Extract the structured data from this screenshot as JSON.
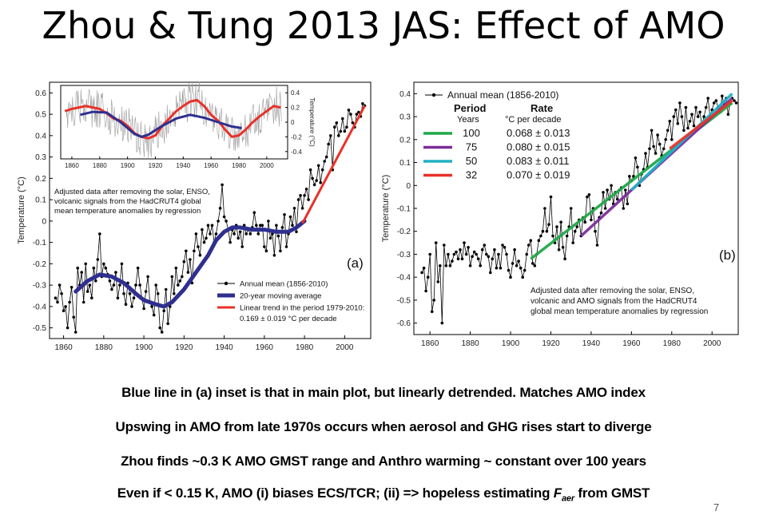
{
  "slide": {
    "title": "Zhou & Tung 2013 JAS: Effect of AMO",
    "page_number": "7",
    "bullets": [
      {
        "text": "Blue line in (a) inset is that in main plot, but linearly detrended. Matches AMO index"
      },
      {
        "text": "Upswing in AMO from late 1970s occurs when aerosol and GHG rises start to diverge"
      },
      {
        "text": "Zhou finds ~0.3 K AMO GMST range and Anthro warming ~ constant over 100 years"
      },
      {
        "pre": "Even if < 0.15 K, AMO (i) biases ECS/TCR; (ii) => hopeless estimating ",
        "var": "F",
        "sub": "aer",
        "post": " from GMST"
      }
    ]
  },
  "chart_data": [
    {
      "id": "a",
      "type": "line",
      "panel_label": "(a)",
      "ylabel": "Temperature (°C)",
      "xlim": [
        1853,
        2013
      ],
      "ylim": [
        -0.55,
        0.65
      ],
      "xticks": [
        1860,
        1880,
        1900,
        1920,
        1940,
        1960,
        1980,
        2000
      ],
      "yticks": [
        -0.5,
        -0.4,
        -0.3,
        -0.2,
        -0.1,
        0,
        0.1,
        0.2,
        0.3,
        0.4,
        0.5,
        0.6
      ],
      "ytick_labels": [
        "-0.5",
        "-0.4",
        "-0.3",
        "-0.2",
        "-0.1",
        "0",
        "0.1",
        "0.2",
        "0.3",
        "0.4",
        "0.5",
        "0.6"
      ],
      "xtick_labels": [
        "1860",
        "1880",
        "1900",
        "1920",
        "1940",
        "1960",
        "1980",
        "2000"
      ],
      "annotation": [
        "Adjusted data after removing the solar, ENSO,",
        "volcanic signals from the HadCRUT4 global",
        "mean temperature anomalies by regression"
      ],
      "legend": [
        {
          "label": "Annual mean (1856-2010)",
          "color": "#000000",
          "style": "marker-line"
        },
        {
          "label": "20-year moving average",
          "color": "#2e2f8f",
          "style": "thick"
        },
        {
          "label": "Linear trend in the period 1979-2010:",
          "label2": "0.169 ± 0.019 °C per decade",
          "color": "#e8312a",
          "style": "line"
        }
      ],
      "series": [
        {
          "name": "Annual mean (1856-2010)",
          "color": "#000000",
          "start_year": 1856,
          "values": [
            -0.36,
            -0.38,
            -0.3,
            -0.34,
            -0.42,
            -0.4,
            -0.5,
            -0.38,
            -0.31,
            -0.45,
            -0.52,
            -0.22,
            -0.3,
            -0.24,
            -0.38,
            -0.2,
            -0.33,
            -0.3,
            -0.36,
            -0.22,
            -0.28,
            -0.18,
            -0.06,
            -0.26,
            -0.2,
            -0.22,
            -0.25,
            -0.28,
            -0.32,
            -0.3,
            -0.24,
            -0.36,
            -0.3,
            -0.2,
            -0.34,
            -0.39,
            -0.29,
            -0.34,
            -0.4,
            -0.36,
            -0.3,
            -0.22,
            -0.3,
            -0.36,
            -0.41,
            -0.33,
            -0.26,
            -0.38,
            -0.4,
            -0.44,
            -0.3,
            -0.34,
            -0.5,
            -0.52,
            -0.42,
            -0.32,
            -0.48,
            -0.4,
            -0.26,
            -0.34,
            -0.22,
            -0.3,
            -0.28,
            -0.26,
            -0.19,
            -0.14,
            -0.24,
            -0.18,
            -0.29,
            -0.14,
            -0.06,
            -0.12,
            -0.16,
            -0.04,
            -0.1,
            -0.08,
            -0.02,
            -0.06,
            -0.02,
            -0.1,
            -0.06,
            0.0,
            0.06,
            0.17,
            0.02,
            0.0,
            -0.04,
            -0.1,
            -0.04,
            -0.06,
            -0.02,
            -0.08,
            -0.05,
            -0.12,
            -0.02,
            -0.06,
            -0.04,
            -0.06,
            -0.03,
            0.04,
            -0.02,
            -0.06,
            -0.02,
            -0.02,
            -0.12,
            -0.14,
            0.0,
            -0.08,
            -0.06,
            -0.16,
            -0.02,
            -0.07,
            -0.14,
            -0.03,
            0.03,
            -0.12,
            -0.06,
            0.02,
            -0.02,
            0.06,
            -0.05,
            0.1,
            0.12,
            0.06,
            0.12,
            0.15,
            0.1,
            0.24,
            0.2,
            0.17,
            0.19,
            0.26,
            0.18,
            0.24,
            0.28,
            0.3,
            0.36,
            0.4,
            0.24,
            0.44,
            0.46,
            0.4,
            0.42,
            0.48,
            0.42,
            0.44,
            0.52,
            0.5,
            0.46,
            0.44,
            0.5,
            0.51,
            0.49,
            0.55,
            0.54
          ]
        },
        {
          "name": "20-year moving average",
          "color": "#2e2f8f",
          "x": [
            1866,
            1872,
            1878,
            1884,
            1890,
            1896,
            1900,
            1906,
            1910,
            1914,
            1920,
            1926,
            1932,
            1936,
            1940,
            1944,
            1948,
            1954,
            1960,
            1966,
            1972,
            1976,
            1980
          ],
          "values": [
            -0.33,
            -0.28,
            -0.25,
            -0.26,
            -0.29,
            -0.34,
            -0.37,
            -0.39,
            -0.4,
            -0.38,
            -0.32,
            -0.24,
            -0.16,
            -0.09,
            -0.05,
            -0.03,
            -0.03,
            -0.04,
            -0.04,
            -0.05,
            -0.05,
            -0.03,
            0.0
          ]
        },
        {
          "name": "Linear trend 1979-2010",
          "color": "#e8312a",
          "x": [
            1979,
            2010
          ],
          "values": [
            -0.01,
            0.54
          ]
        }
      ],
      "inset": {
        "ylabel": "Temperature (°C)",
        "xlim": [
          1852,
          2015
        ],
        "ylim": [
          -0.5,
          0.5
        ],
        "xticks": [
          1860,
          1880,
          1900,
          1920,
          1940,
          1960,
          1980,
          2000
        ],
        "xtick_labels": [
          "1860",
          "1880",
          "1900",
          "1920",
          "1940",
          "1960",
          "1980",
          "2000"
        ],
        "yticks": [
          -0.4,
          -0.2,
          0,
          0.2,
          0.4
        ],
        "ytick_labels": [
          "-0.4",
          "-0.2",
          "0",
          "0.2",
          "0.4"
        ],
        "series": [
          {
            "name": "AMO index",
            "color": "#e8312a",
            "x": [
              1855,
              1860,
              1865,
              1870,
              1875,
              1880,
              1885,
              1890,
              1895,
              1900,
              1905,
              1910,
              1915,
              1920,
              1925,
              1930,
              1935,
              1940,
              1945,
              1950,
              1955,
              1960,
              1965,
              1970,
              1975,
              1980,
              1985,
              1990,
              1995,
              2000,
              2005,
              2010
            ],
            "values": [
              0.15,
              0.18,
              0.2,
              0.22,
              0.2,
              0.18,
              0.12,
              0.05,
              0.02,
              -0.05,
              -0.15,
              -0.2,
              -0.22,
              -0.18,
              -0.05,
              0.05,
              0.15,
              0.22,
              0.28,
              0.3,
              0.22,
              0.1,
              0.02,
              -0.1,
              -0.2,
              -0.18,
              -0.1,
              0.0,
              0.08,
              0.15,
              0.22,
              0.2
            ]
          },
          {
            "name": "Detrended 20-year moving average",
            "color": "#2e2f8f",
            "x": [
              1866,
              1875,
              1885,
              1895,
              1905,
              1910,
              1915,
              1925,
              1935,
              1945,
              1955,
              1965,
              1975,
              1982
            ],
            "values": [
              0.1,
              0.14,
              0.13,
              0.0,
              -0.16,
              -0.2,
              -0.17,
              -0.05,
              0.05,
              0.1,
              0.06,
              0.0,
              -0.06,
              -0.08
            ]
          }
        ]
      }
    },
    {
      "id": "b",
      "type": "line",
      "panel_label": "(b)",
      "ylabel": "Temperature (°C)",
      "xlim": [
        1852,
        2013
      ],
      "ylim": [
        -0.65,
        0.45
      ],
      "xticks": [
        1860,
        1880,
        1900,
        1920,
        1940,
        1960,
        1980,
        2000
      ],
      "xtick_labels": [
        "1860",
        "1880",
        "1900",
        "1920",
        "1940",
        "1960",
        "1980",
        "2000"
      ],
      "yticks": [
        -0.6,
        -0.5,
        -0.4,
        -0.3,
        -0.2,
        -0.1,
        0,
        0.1,
        0.2,
        0.3,
        0.4
      ],
      "ytick_labels": [
        "-0.6",
        "-0.5",
        "-0.4",
        "-0.3",
        "-0.2",
        "-0.1",
        "0",
        "0.1",
        "0.2",
        "0.3",
        "0.4"
      ],
      "annotation": [
        "Adjusted data after removing the solar, ENSO,",
        "volcanic and AMO signals from the HadCRUT4",
        "global mean temperature anomalies by regression"
      ],
      "legend_title": "Annual mean (1856-2010)",
      "legend_headers": {
        "period": "Period",
        "period_unit": "Years",
        "rate": "Rate",
        "rate_unit": "°C per decade"
      },
      "trends": [
        {
          "period": "100",
          "rate": "0.068 ± 0.013",
          "color": "#21a84a",
          "x": [
            1910,
            2010
          ],
          "values": [
            -0.32,
            0.36
          ]
        },
        {
          "period": "75",
          "rate": "0.080 ± 0.015",
          "color": "#7b2d9a",
          "x": [
            1935,
            2010
          ],
          "values": [
            -0.22,
            0.38
          ]
        },
        {
          "period": "50",
          "rate": "0.083 ± 0.011",
          "color": "#1fb0c6",
          "x": [
            1960,
            2010
          ],
          "values": [
            -0.02,
            0.4
          ]
        },
        {
          "period": "32",
          "rate": "0.070 ± 0.019",
          "color": "#e8312a",
          "x": [
            1979,
            2010
          ],
          "values": [
            0.16,
            0.37
          ]
        }
      ],
      "series": [
        {
          "name": "Annual mean (1856-2010)",
          "color": "#000000",
          "start_year": 1856,
          "values": [
            -0.38,
            -0.36,
            -0.46,
            -0.4,
            -0.3,
            -0.55,
            -0.5,
            -0.25,
            -0.42,
            -0.35,
            -0.6,
            -0.26,
            -0.35,
            -0.3,
            -0.35,
            -0.33,
            -0.3,
            -0.29,
            -0.32,
            -0.28,
            -0.32,
            -0.25,
            -0.3,
            -0.27,
            -0.35,
            -0.31,
            -0.29,
            -0.3,
            -0.32,
            -0.35,
            -0.28,
            -0.26,
            -0.3,
            -0.31,
            -0.38,
            -0.32,
            -0.28,
            -0.36,
            -0.3,
            -0.36,
            -0.26,
            -0.27,
            -0.3,
            -0.37,
            -0.4,
            -0.34,
            -0.28,
            -0.35,
            -0.33,
            -0.36,
            -0.4,
            -0.37,
            -0.3,
            -0.26,
            -0.24,
            -0.34,
            -0.35,
            -0.3,
            -0.24,
            -0.22,
            -0.2,
            -0.1,
            -0.2,
            -0.17,
            -0.05,
            -0.22,
            -0.25,
            -0.18,
            -0.28,
            -0.16,
            -0.27,
            -0.32,
            -0.22,
            -0.18,
            -0.1,
            -0.25,
            -0.2,
            -0.18,
            -0.15,
            -0.22,
            -0.14,
            -0.16,
            -0.05,
            -0.04,
            -0.15,
            -0.1,
            -0.2,
            -0.26,
            -0.14,
            -0.12,
            -0.03,
            -0.1,
            -0.02,
            -0.06,
            0.0,
            -0.08,
            -0.03,
            -0.06,
            -0.02,
            -0.01,
            -0.1,
            -0.02,
            -0.08,
            0.04,
            0.02,
            0.04,
            0.12,
            0.08,
            0.0,
            0.05,
            0.07,
            0.14,
            0.08,
            0.16,
            0.24,
            0.17,
            0.14,
            0.22,
            0.18,
            0.13,
            0.16,
            0.2,
            0.24,
            0.28,
            0.2,
            0.3,
            0.33,
            0.27,
            0.36,
            0.3,
            0.24,
            0.34,
            0.25,
            0.28,
            0.31,
            0.26,
            0.34,
            0.3,
            0.32,
            0.26,
            0.3,
            0.34,
            0.38,
            0.3,
            0.33,
            0.36,
            0.37,
            0.34,
            0.32,
            0.39,
            0.35,
            0.38,
            0.31,
            0.36,
            0.38,
            0.37,
            0.36
          ]
        }
      ]
    }
  ]
}
